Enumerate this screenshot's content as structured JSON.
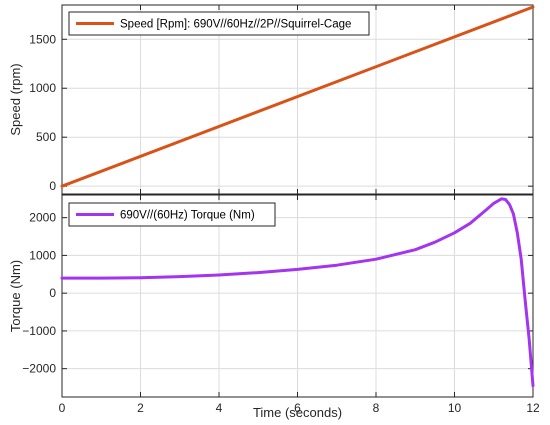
{
  "figure": {
    "background": "#ffffff",
    "axes_color": "#262626",
    "grid_color": "#dcdcdc"
  },
  "chart_data": [
    {
      "type": "line",
      "title": "",
      "xlabel": "",
      "ylabel": "Speed (rpm)",
      "xlim": [
        0,
        12
      ],
      "ylim": [
        -80,
        1850
      ],
      "xticks": [
        0,
        2,
        4,
        6,
        8,
        10,
        12
      ],
      "yticks": [
        0,
        500,
        1000,
        1500
      ],
      "show_xtick_labels": false,
      "grid": true,
      "legend_position": "top-left",
      "series": [
        {
          "name": "Speed [Rpm]: 690V//60Hz//2P//Squirrel-Cage",
          "color": "#D95319",
          "x": [
            0,
            12
          ],
          "y": [
            0,
            1830
          ]
        }
      ]
    },
    {
      "type": "line",
      "title": "",
      "xlabel": "Time (seconds)",
      "ylabel": "Torque (Nm)",
      "xlim": [
        0,
        12
      ],
      "ylim": [
        -2750,
        2600
      ],
      "xticks": [
        0,
        2,
        4,
        6,
        8,
        10,
        12
      ],
      "yticks": [
        -2000,
        -1000,
        0,
        1000,
        2000
      ],
      "show_xtick_labels": true,
      "grid": true,
      "legend_position": "top-left",
      "series": [
        {
          "name": "690V//(60Hz) Torque (Nm)",
          "color": "#A334F0",
          "x": [
            0,
            1,
            2,
            3,
            4,
            5,
            6,
            7,
            8,
            9,
            9.5,
            10,
            10.4,
            10.8,
            11,
            11.2,
            11.3,
            11.4,
            11.5,
            11.6,
            11.7,
            11.8,
            11.9,
            12
          ],
          "y": [
            400,
            400,
            410,
            440,
            480,
            545,
            630,
            740,
            900,
            1150,
            1350,
            1600,
            1850,
            2200,
            2380,
            2500,
            2480,
            2350,
            2100,
            1600,
            900,
            -200,
            -1200,
            -2450
          ]
        }
      ]
    }
  ]
}
